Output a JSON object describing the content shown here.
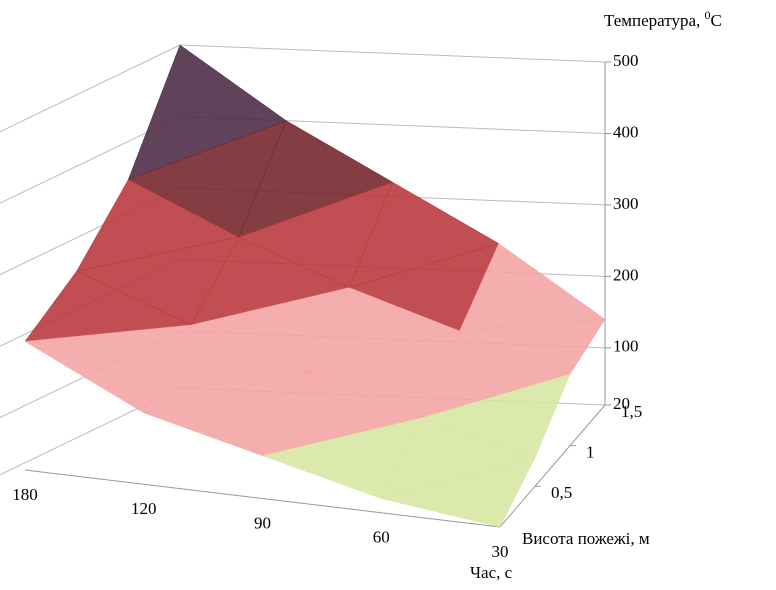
{
  "chart_data": {
    "type": "surface",
    "z_label": {
      "text": "Температура, ",
      "sup": "0",
      "unit": "C"
    },
    "x_label": "Час, с",
    "y_label": "Висота пожежі, м",
    "categories": [
      "180",
      "120",
      "90",
      "60",
      "30"
    ],
    "y": [
      0,
      0.5,
      1,
      1.5
    ],
    "values": [
      [
        200,
        120,
        80,
        40,
        20
      ],
      [
        260,
        200,
        150,
        100,
        60
      ],
      [
        350,
        280,
        220,
        170,
        120
      ],
      [
        500,
        400,
        320,
        240,
        140
      ]
    ],
    "ylim": [
      0,
      1.5
    ],
    "yticks": [
      {
        "value": 0.5,
        "label": "0,5"
      },
      1,
      {
        "value": 1.5,
        "label": "1,5"
      }
    ],
    "zlim": [
      20,
      500
    ],
    "zticks": [
      20,
      100,
      200,
      300,
      400,
      500
    ],
    "band_edges": [
      20,
      100,
      200,
      300,
      400,
      500
    ],
    "band_colors": [
      "#d6e6a0",
      "#f2a3a3",
      "#b8363a",
      "#74222a",
      "#4a2843"
    ],
    "grid": true
  }
}
